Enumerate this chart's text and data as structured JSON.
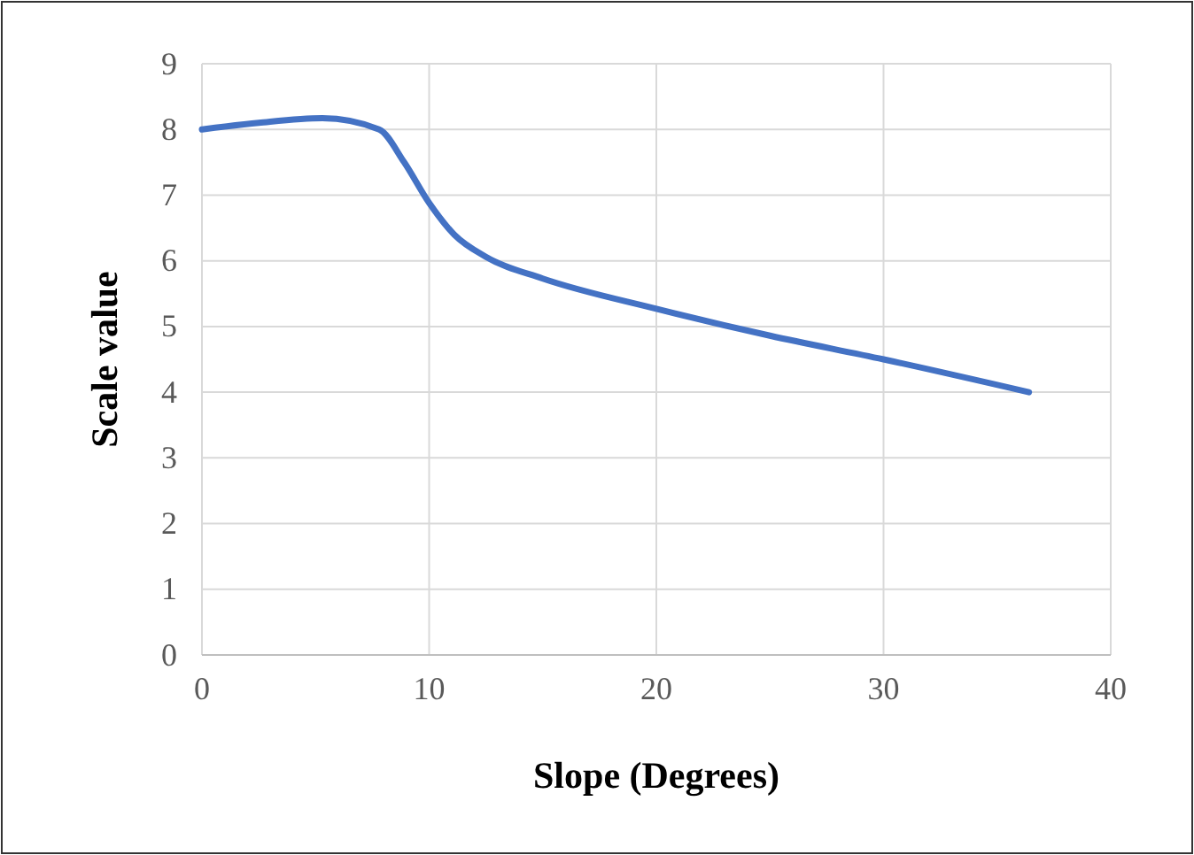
{
  "chart_data": {
    "type": "line",
    "xlabel": "Slope (Degrees)",
    "ylabel": "Scale value",
    "x": [
      0,
      2.5,
      5.3,
      7.8,
      8.9,
      10,
      11.1,
      12.5,
      15,
      20,
      25,
      30,
      36.4
    ],
    "series": [
      {
        "color": "#4472c4",
        "values": [
          8.0,
          8.1,
          8.17,
          8.0,
          7.5,
          6.88,
          6.4,
          6.06,
          5.73,
          5.27,
          4.86,
          4.5,
          4.0
        ]
      }
    ],
    "xlim": [
      0,
      40
    ],
    "xticks": [
      0,
      10,
      20,
      30,
      40
    ],
    "ylim": [
      0,
      9
    ],
    "yticks": [
      0,
      1,
      2,
      3,
      4,
      5,
      6,
      7,
      8,
      9
    ],
    "grid": true,
    "marker": "none",
    "line_style": "solid"
  }
}
